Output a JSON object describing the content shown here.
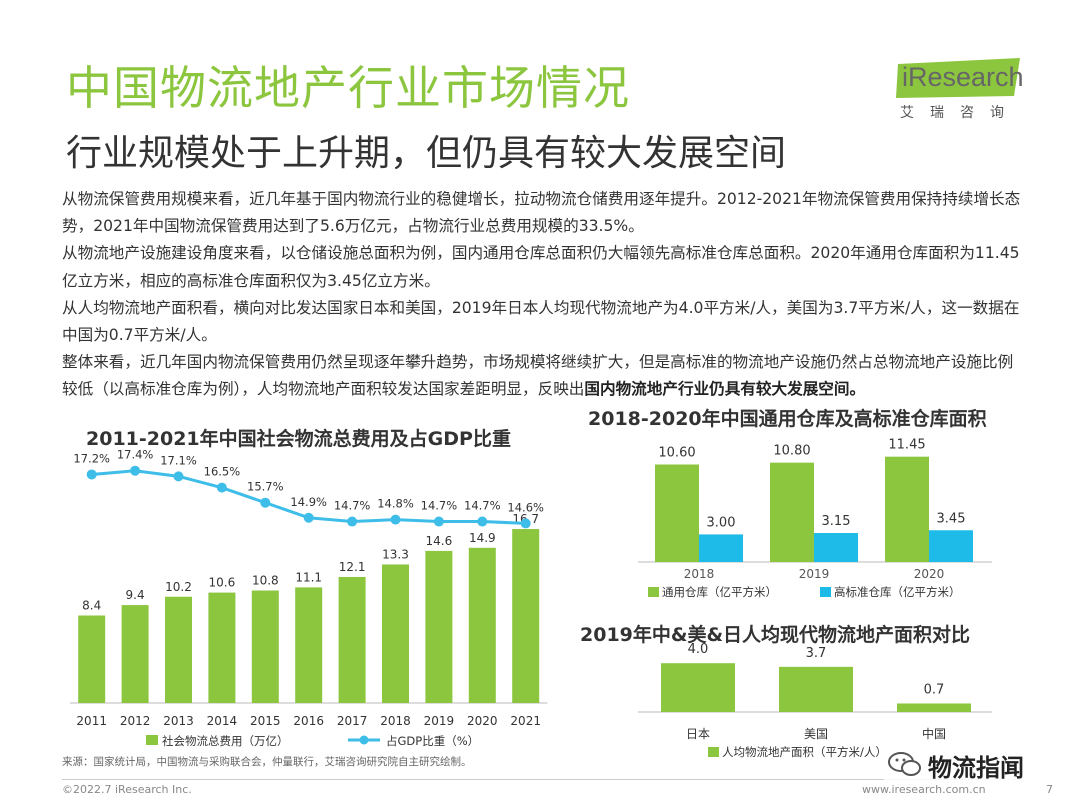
{
  "header": {
    "title": "中国物流地产行业市场情况",
    "subtitle": "行业规模处于上升期，但仍具有较大发展空间",
    "logo_text": "iResearch",
    "logo_cn": "艾瑞咨询"
  },
  "body": {
    "p1": "从物流保管费用规模来看，近几年基于国内物流行业的稳健增长，拉动物流仓储费用逐年提升。2012-2021年物流保管费用保持持续增长态势，2021年中国物流保管费用达到了5.6万亿元，占物流行业总费用规模的33.5%。",
    "p2": "从物流地产设施建设角度来看，以仓储设施总面积为例，国内通用仓库总面积仍大幅领先高标准仓库总面积。2020年通用仓库面积为11.45亿立方米，相应的高标准仓库面积仅为3.45亿立方米。",
    "p3": "从人均物流地产面积看，横向对比发达国家日本和美国，2019年日本人均现代物流地产为4.0平方米/人，美国为3.7平方米/人，这一数据在中国为0.7平方米/人。",
    "p4_plain": "整体来看，近几年国内物流保管费用仍然呈现逐年攀升趋势，市场规模将继续扩大，但是高标准的物流地产设施仍然占总物流地产设施比例较低（以高标准仓库为例），人均物流地产面积较发达国家差距明显，反映出",
    "p4_bold": "国内物流地产行业仍具有较大发展空间。"
  },
  "chart_data": [
    {
      "type": "bar+line",
      "title": "2011-2021年中国社会物流总费用及占GDP比重",
      "categories": [
        "2011",
        "2012",
        "2013",
        "2014",
        "2015",
        "2016",
        "2017",
        "2018",
        "2019",
        "2020",
        "2021"
      ],
      "series": [
        {
          "name": "社会物流总费用（万亿）",
          "kind": "bar",
          "color": "#8cc63f",
          "values": [
            8.4,
            9.4,
            10.2,
            10.6,
            10.8,
            11.1,
            12.1,
            13.3,
            14.6,
            14.9,
            16.7
          ]
        },
        {
          "name": "占GDP比重（%）",
          "kind": "line",
          "color": "#3dbde8",
          "values": [
            17.2,
            17.4,
            17.1,
            16.5,
            15.7,
            14.9,
            14.7,
            14.8,
            14.7,
            14.7,
            14.6
          ],
          "labels": [
            "17.2%",
            "17.4%",
            "17.1%",
            "16.5%",
            "15.7%",
            "14.9%",
            "14.7%",
            "14.8%",
            "14.7%",
            "14.7%",
            "14.6%"
          ]
        }
      ],
      "bar_ylim": [
        0,
        24
      ],
      "line_ylim": [
        10,
        18.5
      ],
      "source": "来源：国家统计局，中国物流与采购联合会，仲量联行，艾瑞咨询研究院自主研究绘制。"
    },
    {
      "type": "bar",
      "title": "2018-2020年中国通用仓库及高标准仓库面积",
      "categories": [
        "2018",
        "2019",
        "2020"
      ],
      "series": [
        {
          "name": "通用仓库（亿平方米）",
          "color": "#8cc63f",
          "values": [
            10.6,
            10.8,
            11.45
          ],
          "labels": [
            "10.60",
            "10.80",
            "11.45"
          ]
        },
        {
          "name": "高标准仓库（亿平方米）",
          "color": "#1ebbe8",
          "values": [
            3.0,
            3.15,
            3.45
          ],
          "labels": [
            "3.00",
            "3.15",
            "3.45"
          ]
        }
      ],
      "ylim": [
        0,
        12.5
      ]
    },
    {
      "type": "bar",
      "title": "2019年中&美&日人均现代物流地产面积对比",
      "categories": [
        "日本",
        "美国",
        "中国"
      ],
      "series": [
        {
          "name": "人均物流地产面积（平方米/人）",
          "color": "#8cc63f",
          "values": [
            4.0,
            3.7,
            0.7
          ],
          "labels": [
            "4.0",
            "3.7",
            "0.7"
          ]
        }
      ],
      "ylim": [
        0,
        5.0
      ]
    }
  ],
  "footer": {
    "copyright": "©2022.7 iResearch Inc.",
    "website": "www.iresearch.com.cn",
    "page": "7",
    "watermark": "物流指闻"
  },
  "colors": {
    "green": "#8cc63f",
    "blue": "#3dbde8",
    "text": "#333333"
  }
}
